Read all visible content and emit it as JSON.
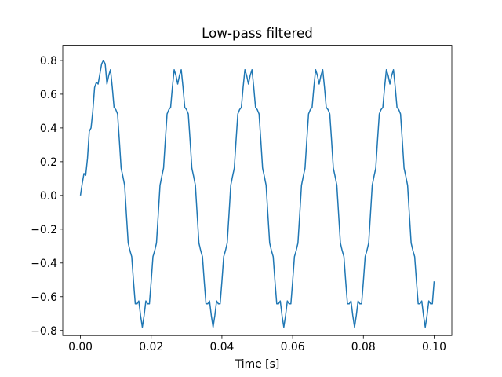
{
  "chart_data": {
    "type": "line",
    "title": "Low-pass filtered",
    "x_label": "Time [s]",
    "color": "#1f77b4",
    "x": [
      0,
      0.0005,
      0.001,
      0.0015,
      0.002,
      0.0025,
      0.003,
      0.0035,
      0.004,
      0.0045,
      0.005,
      0.0055,
      0.006,
      0.0065,
      0.007,
      0.0075,
      0.008,
      0.0085,
      0.009,
      0.0095,
      0.01,
      0.0105,
      0.011,
      0.0115,
      0.012,
      0.0125,
      0.013,
      0.0135,
      0.014,
      0.0145,
      0.015,
      0.0155,
      0.016,
      0.0165,
      0.017,
      0.0175,
      0.018,
      0.0185,
      0.019,
      0.0195,
      0.02,
      0.0205,
      0.021,
      0.0215,
      0.022,
      0.0225,
      0.023,
      0.0235,
      0.024,
      0.0245,
      0.025,
      0.0255,
      0.026,
      0.0265,
      0.027,
      0.0275,
      0.028,
      0.0285,
      0.029,
      0.0295,
      0.03,
      0.0305,
      0.031,
      0.0315,
      0.032,
      0.0325,
      0.033,
      0.0335,
      0.034,
      0.0345,
      0.035,
      0.0355,
      0.036,
      0.0365,
      0.037,
      0.0375,
      0.038,
      0.0385,
      0.039,
      0.0395,
      0.04,
      0.0405,
      0.041,
      0.0415,
      0.042,
      0.0425,
      0.043,
      0.0435,
      0.044,
      0.0445,
      0.045,
      0.0455,
      0.046,
      0.0465,
      0.047,
      0.0475,
      0.048,
      0.0485,
      0.049,
      0.0495,
      0.05,
      0.0505,
      0.051,
      0.0515,
      0.052,
      0.0525,
      0.053,
      0.0535,
      0.054,
      0.0545,
      0.055,
      0.0555,
      0.056,
      0.0565,
      0.057,
      0.0575,
      0.058,
      0.0585,
      0.059,
      0.0595,
      0.06,
      0.0605,
      0.061,
      0.0615,
      0.062,
      0.0625,
      0.063,
      0.0635,
      0.064,
      0.0645,
      0.065,
      0.0655,
      0.066,
      0.0665,
      0.067,
      0.0675,
      0.068,
      0.0685,
      0.069,
      0.0695,
      0.07,
      0.0705,
      0.071,
      0.0715,
      0.072,
      0.0725,
      0.073,
      0.0735,
      0.074,
      0.0745,
      0.075,
      0.0755,
      0.076,
      0.0765,
      0.077,
      0.0775,
      0.078,
      0.0785,
      0.079,
      0.0795,
      0.08,
      0.0805,
      0.081,
      0.0815,
      0.082,
      0.0825,
      0.083,
      0.0835,
      0.084,
      0.0845,
      0.085,
      0.0855,
      0.086,
      0.0865,
      0.087,
      0.0875,
      0.088,
      0.0885,
      0.089,
      0.0895,
      0.09,
      0.0905,
      0.091,
      0.0915,
      0.092,
      0.0925,
      0.093,
      0.0935,
      0.094,
      0.0945,
      0.095,
      0.0955,
      0.096,
      0.0965,
      0.097,
      0.0975,
      0.098,
      0.0985,
      0.099,
      0.0995,
      0.1
    ],
    "values": [
      0,
      0.07,
      0.13,
      0.12,
      0.22,
      0.38,
      0.4,
      0.5,
      0.64,
      0.67,
      0.66,
      0.72,
      0.78,
      0.8,
      0.78,
      0.66,
      0.711,
      0.745,
      0.642,
      0.522,
      0.509,
      0.483,
      0.327,
      0.162,
      0.113,
      0.06,
      -0.113,
      -0.282,
      -0.327,
      -0.363,
      -0.509,
      -0.642,
      -0.642,
      -0.625,
      -0.711,
      -0.78,
      -0.711,
      -0.625,
      -0.642,
      -0.642,
      -0.509,
      -0.363,
      -0.327,
      -0.282,
      -0.113,
      0.06,
      0.113,
      0.162,
      0.327,
      0.483,
      0.509,
      0.522,
      0.642,
      0.745,
      0.711,
      0.66,
      0.711,
      0.745,
      0.642,
      0.522,
      0.509,
      0.483,
      0.327,
      0.162,
      0.113,
      0.06,
      -0.113,
      -0.282,
      -0.327,
      -0.363,
      -0.509,
      -0.642,
      -0.642,
      -0.625,
      -0.711,
      -0.78,
      -0.711,
      -0.625,
      -0.642,
      -0.642,
      -0.509,
      -0.363,
      -0.327,
      -0.282,
      -0.113,
      0.06,
      0.113,
      0.162,
      0.327,
      0.483,
      0.509,
      0.522,
      0.642,
      0.745,
      0.711,
      0.66,
      0.711,
      0.745,
      0.642,
      0.522,
      0.509,
      0.483,
      0.327,
      0.162,
      0.113,
      0.06,
      -0.113,
      -0.282,
      -0.327,
      -0.363,
      -0.509,
      -0.642,
      -0.642,
      -0.625,
      -0.711,
      -0.78,
      -0.711,
      -0.625,
      -0.642,
      -0.642,
      -0.509,
      -0.363,
      -0.327,
      -0.282,
      -0.113,
      0.06,
      0.113,
      0.162,
      0.327,
      0.483,
      0.509,
      0.522,
      0.642,
      0.745,
      0.711,
      0.66,
      0.711,
      0.745,
      0.642,
      0.522,
      0.509,
      0.483,
      0.327,
      0.162,
      0.113,
      0.06,
      -0.113,
      -0.282,
      -0.327,
      -0.363,
      -0.509,
      -0.642,
      -0.642,
      -0.625,
      -0.711,
      -0.78,
      -0.711,
      -0.625,
      -0.642,
      -0.642,
      -0.509,
      -0.363,
      -0.327,
      -0.282,
      -0.113,
      0.06,
      0.113,
      0.162,
      0.327,
      0.483,
      0.509,
      0.522,
      0.642,
      0.745,
      0.711,
      0.66,
      0.711,
      0.745,
      0.642,
      0.522,
      0.509,
      0.483,
      0.327,
      0.162,
      0.113,
      0.06,
      -0.113,
      -0.282,
      -0.327,
      -0.363,
      -0.509,
      -0.642,
      -0.642,
      -0.625,
      -0.711,
      -0.78,
      -0.711,
      -0.625,
      -0.642,
      -0.642,
      -0.509
    ],
    "xlim": [
      -0.005,
      0.105
    ],
    "ylim": [
      -0.83,
      0.89
    ],
    "xticks": [
      {
        "value": 0,
        "label": "0.00"
      },
      {
        "value": 0.02,
        "label": "0.02"
      },
      {
        "value": 0.04,
        "label": "0.04"
      },
      {
        "value": 0.06,
        "label": "0.06"
      },
      {
        "value": 0.08,
        "label": "0.08"
      },
      {
        "value": 0.1,
        "label": "0.10"
      }
    ],
    "yticks": [
      {
        "value": -0.8,
        "label": "−0.8"
      },
      {
        "value": -0.6,
        "label": "−0.6"
      },
      {
        "value": -0.4,
        "label": "−0.4"
      },
      {
        "value": -0.2,
        "label": "−0.2"
      },
      {
        "value": 0,
        "label": "0.0"
      },
      0.2,
      0.4,
      0.6,
      0.8
    ],
    "grid": false
  }
}
